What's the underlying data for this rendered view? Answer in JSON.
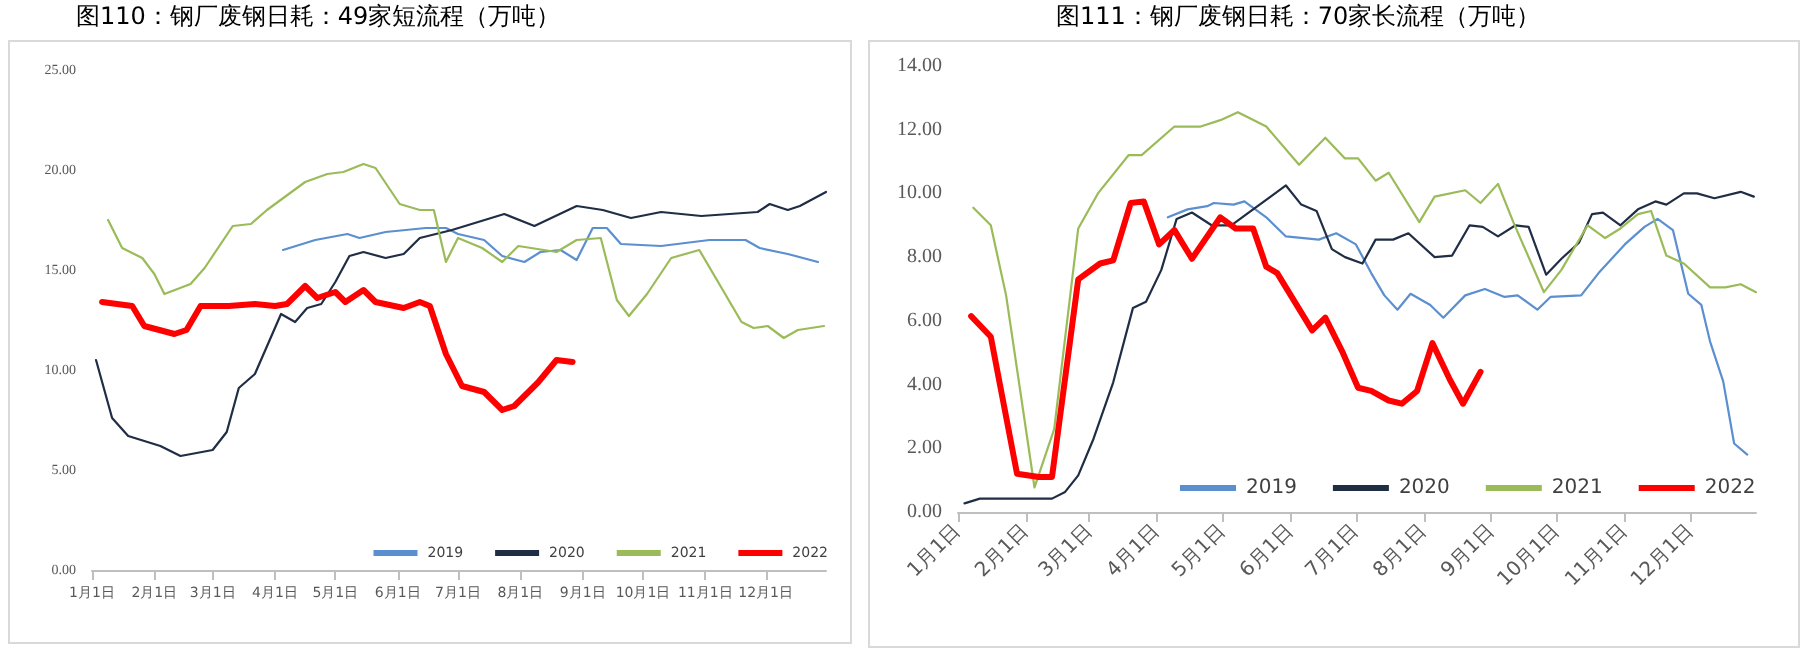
{
  "chart_data": [
    {
      "type": "line",
      "title": "图110：钢厂废钢日耗：49家短流程（万吨）",
      "xlim": [
        "--01-01",
        "--12-31"
      ],
      "xticks": [
        {
          "value": "--01-01",
          "label": "1月1日"
        },
        {
          "value": "--02-01",
          "label": "2月1日"
        },
        {
          "value": "--03-01",
          "label": "3月1日"
        },
        {
          "value": "--04-01",
          "label": "4月1日"
        },
        {
          "value": "--05-01",
          "label": "5月1日"
        },
        {
          "value": "--06-01",
          "label": "6月1日"
        },
        {
          "value": "--07-01",
          "label": "7月1日"
        },
        {
          "value": "--08-01",
          "label": "8月1日"
        },
        {
          "value": "--09-01",
          "label": "9月1日"
        },
        {
          "value": "--10-01",
          "label": "10月1日"
        },
        {
          "value": "--11-01",
          "label": "11月1日"
        },
        {
          "value": "--12-01",
          "label": "12月1日"
        }
      ],
      "ylim": [
        0,
        25
      ],
      "yticks": [
        {
          "value": 0,
          "label": "0.00"
        },
        {
          "value": 5,
          "label": "5.00"
        },
        {
          "value": 10,
          "label": "10.00"
        },
        {
          "value": 15,
          "label": "15.00"
        },
        {
          "value": 20,
          "label": "20.00"
        },
        {
          "value": 25,
          "label": "25.00"
        }
      ],
      "grid": false,
      "legend": "bottom right",
      "marker": "none",
      "series": [
        {
          "name": "2019",
          "color": "#5b8fd0",
          "x": [
            "--04-05",
            "--04-21",
            "--05-07",
            "--05-13",
            "--05-26",
            "--06-15",
            "--06-25",
            "--07-01",
            "--07-14",
            "--07-23",
            "--08-03",
            "--08-11",
            "--08-21",
            "--08-29",
            "--09-06",
            "--09-13",
            "--09-20",
            "--10-10",
            "--11-03",
            "--11-21",
            "--11-28",
            "--12-12",
            "--12-27"
          ],
          "values": [
            16.0,
            16.5,
            16.8,
            16.6,
            16.9,
            17.1,
            17.1,
            16.8,
            16.5,
            15.7,
            15.4,
            15.9,
            16.0,
            15.5,
            17.1,
            17.1,
            16.3,
            16.2,
            16.5,
            16.5,
            16.1,
            15.8,
            15.4
          ]
        },
        {
          "name": "2020",
          "color": "#1f2d45",
          "x": [
            "--01-03",
            "--01-11",
            "--01-19",
            "--02-04",
            "--02-14",
            "--03-01",
            "--03-08",
            "--03-14",
            "--03-22",
            "--04-04",
            "--04-11",
            "--04-17",
            "--04-24",
            "--05-01",
            "--05-08",
            "--05-15",
            "--05-26",
            "--06-04",
            "--06-12",
            "--06-20",
            "--06-28",
            "--07-11",
            "--07-24",
            "--08-08",
            "--08-29",
            "--09-11",
            "--09-25",
            "--10-10",
            "--10-30",
            "--11-27",
            "--12-03",
            "--12-12",
            "--12-18",
            "--12-31"
          ],
          "values": [
            10.5,
            7.6,
            6.7,
            6.2,
            5.7,
            6.0,
            6.9,
            9.1,
            9.8,
            12.8,
            12.4,
            13.1,
            13.3,
            14.4,
            15.7,
            15.9,
            15.6,
            15.8,
            16.6,
            16.8,
            17.0,
            17.4,
            17.8,
            17.2,
            18.2,
            18.0,
            17.6,
            17.9,
            17.7,
            17.9,
            18.3,
            18.0,
            18.2,
            18.9
          ]
        },
        {
          "name": "2021",
          "color": "#9bbb59",
          "x": [
            "--01-09",
            "--01-16",
            "--01-26",
            "--02-01",
            "--02-06",
            "--02-19",
            "--02-26",
            "--03-11",
            "--03-20",
            "--03-28",
            "--04-16",
            "--04-27",
            "--05-05",
            "--05-15",
            "--05-21",
            "--06-02",
            "--06-12",
            "--06-19",
            "--06-25",
            "--07-01",
            "--07-13",
            "--07-23",
            "--07-31",
            "--08-19",
            "--08-29",
            "--09-10",
            "--09-18",
            "--09-24",
            "--10-03",
            "--10-15",
            "--10-29",
            "--11-19",
            "--11-25",
            "--12-02",
            "--12-10",
            "--12-17",
            "--12-30"
          ],
          "values": [
            17.5,
            16.1,
            15.6,
            14.8,
            13.8,
            14.3,
            15.1,
            17.2,
            17.3,
            18.0,
            19.4,
            19.8,
            19.9,
            20.3,
            20.1,
            18.3,
            18.0,
            18.0,
            15.4,
            16.6,
            16.1,
            15.4,
            16.2,
            15.9,
            16.5,
            16.6,
            13.5,
            12.7,
            13.8,
            15.6,
            16.0,
            12.4,
            12.1,
            12.2,
            11.6,
            12.0,
            12.2
          ]
        },
        {
          "name": "2022",
          "color": "#ff0000",
          "x": [
            "--01-06",
            "--01-21",
            "--01-27",
            "--02-11",
            "--02-17",
            "--02-24",
            "--03-09",
            "--03-22",
            "--04-01",
            "--04-07",
            "--04-16",
            "--04-22",
            "--05-01",
            "--05-06",
            "--05-15",
            "--05-21",
            "--06-04",
            "--06-12",
            "--06-17",
            "--06-25",
            "--07-03",
            "--07-14",
            "--07-23",
            "--07-29",
            "--08-10",
            "--08-19",
            "--08-27"
          ],
          "values": [
            13.4,
            13.2,
            12.2,
            11.8,
            12.0,
            13.2,
            13.2,
            13.3,
            13.2,
            13.3,
            14.2,
            13.6,
            13.9,
            13.4,
            14.0,
            13.4,
            13.1,
            13.4,
            13.2,
            10.8,
            9.2,
            8.9,
            8.0,
            8.2,
            9.4,
            10.5,
            10.4
          ]
        }
      ]
    },
    {
      "type": "line",
      "title": "图111：钢厂废钢日耗：70家长流程（万吨）",
      "xlim": [
        "--01-01",
        "--12-31"
      ],
      "xticks": [
        {
          "value": "--01-01",
          "label": "1月1日"
        },
        {
          "value": "--02-01",
          "label": "2月1日"
        },
        {
          "value": "--03-01",
          "label": "3月1日"
        },
        {
          "value": "--04-01",
          "label": "4月1日"
        },
        {
          "value": "--05-01",
          "label": "5月1日"
        },
        {
          "value": "--06-01",
          "label": "6月1日"
        },
        {
          "value": "--07-01",
          "label": "7月1日"
        },
        {
          "value": "--08-01",
          "label": "8月1日"
        },
        {
          "value": "--09-01",
          "label": "9月1日"
        },
        {
          "value": "--10-01",
          "label": "10月1日"
        },
        {
          "value": "--11-01",
          "label": "11月1日"
        },
        {
          "value": "--12-01",
          "label": "12月1日"
        }
      ],
      "ylim": [
        0,
        14
      ],
      "yticks": [
        {
          "value": 0,
          "label": "0.00"
        },
        {
          "value": 2,
          "label": "2.00"
        },
        {
          "value": 4,
          "label": "4.00"
        },
        {
          "value": 6,
          "label": "6.00"
        },
        {
          "value": 8,
          "label": "8.00"
        },
        {
          "value": 10,
          "label": "10.00"
        },
        {
          "value": 12,
          "label": "12.00"
        },
        {
          "value": 14,
          "label": "14.00"
        }
      ],
      "grid": false,
      "legend": "bottom",
      "marker": "none",
      "series": [
        {
          "name": "2019",
          "color": "#5b8fd0",
          "x": [
            "--04-06",
            "--04-15",
            "--04-24",
            "--04-27",
            "--05-06",
            "--05-11",
            "--05-21",
            "--05-30",
            "--06-14",
            "--06-22",
            "--07-01",
            "--07-08",
            "--07-14",
            "--07-20",
            "--07-26",
            "--08-04",
            "--08-10",
            "--08-20",
            "--08-29",
            "--09-07",
            "--09-13",
            "--09-22",
            "--09-28",
            "--10-12",
            "--10-20",
            "--11-01",
            "--11-10",
            "--11-16",
            "--11-23",
            "--11-30",
            "--12-06",
            "--12-10",
            "--12-16",
            "--12-21",
            "--12-27"
          ],
          "values": [
            9.25,
            9.5,
            9.6,
            9.7,
            9.65,
            9.75,
            9.25,
            8.65,
            8.55,
            8.75,
            8.4,
            7.5,
            6.8,
            6.35,
            6.85,
            6.5,
            6.1,
            6.8,
            7.0,
            6.75,
            6.8,
            6.35,
            6.75,
            6.8,
            7.5,
            8.4,
            8.95,
            9.2,
            8.85,
            6.85,
            6.5,
            5.35,
            4.1,
            2.15,
            1.8
          ]
        },
        {
          "name": "2020",
          "color": "#1f2d45",
          "x": [
            "--01-04",
            "--01-11",
            "--02-13",
            "--02-19",
            "--02-25",
            "--03-03",
            "--03-12",
            "--03-21",
            "--03-27",
            "--04-03",
            "--04-10",
            "--04-17",
            "--04-26",
            "--05-05",
            "--05-12",
            "--05-23",
            "--05-30",
            "--06-06",
            "--06-13",
            "--06-20",
            "--06-26",
            "--07-04",
            "--07-10",
            "--07-18",
            "--07-25",
            "--08-06",
            "--08-14",
            "--08-22",
            "--08-28",
            "--09-04",
            "--09-12",
            "--09-18",
            "--09-26",
            "--10-03",
            "--10-11",
            "--10-17",
            "--10-22",
            "--10-30",
            "--11-07",
            "--11-15",
            "--11-20",
            "--11-28",
            "--12-04",
            "--12-12",
            "--12-24",
            "--12-30"
          ],
          "values": [
            0.27,
            0.42,
            0.42,
            0.63,
            1.15,
            2.3,
            4.07,
            6.4,
            6.6,
            7.6,
            9.2,
            9.4,
            9.0,
            9.0,
            9.35,
            9.9,
            10.25,
            9.65,
            9.45,
            8.25,
            8.0,
            7.8,
            8.55,
            8.55,
            8.75,
            8.0,
            8.05,
            9.0,
            8.95,
            8.65,
            9.0,
            8.95,
            7.45,
            7.95,
            8.45,
            9.35,
            9.4,
            9.0,
            9.5,
            9.75,
            9.65,
            10.0,
            10.0,
            9.85,
            10.05,
            9.9
          ]
        },
        {
          "name": "2021",
          "color": "#9bbb59",
          "x": [
            "--01-08",
            "--01-16",
            "--01-23",
            "--02-05",
            "--02-14",
            "--02-25",
            "--03-05",
            "--03-19",
            "--03-25",
            "--04-09",
            "--04-21",
            "--04-30",
            "--05-08",
            "--05-21",
            "--06-05",
            "--06-17",
            "--06-26",
            "--07-02",
            "--07-10",
            "--07-16",
            "--07-30",
            "--08-06",
            "--08-20",
            "--08-27",
            "--09-04",
            "--09-11",
            "--09-25",
            "--10-03",
            "--10-15",
            "--10-23",
            "--10-30",
            "--11-07",
            "--11-13",
            "--11-20",
            "--11-28",
            "--12-10",
            "--12-17",
            "--12-24",
            "--12-31"
          ],
          "values": [
            9.55,
            9.0,
            6.8,
            0.77,
            2.6,
            8.9,
            10.0,
            11.2,
            11.2,
            12.1,
            12.1,
            12.3,
            12.55,
            12.1,
            10.9,
            11.75,
            11.1,
            11.1,
            10.4,
            10.65,
            9.1,
            9.9,
            10.1,
            9.7,
            10.3,
            9.1,
            6.9,
            7.6,
            9.0,
            8.6,
            8.9,
            9.35,
            9.45,
            8.05,
            7.8,
            7.05,
            7.05,
            7.15,
            6.9
          ]
        },
        {
          "name": "2022",
          "color": "#ff0000",
          "x": [
            "--01-07",
            "--01-16",
            "--01-28",
            "--02-07",
            "--02-13",
            "--02-25",
            "--03-06",
            "--03-12",
            "--03-20",
            "--03-26",
            "--04-02",
            "--04-09",
            "--04-17",
            "--04-30",
            "--05-07",
            "--05-15",
            "--05-21",
            "--05-26",
            "--06-11",
            "--06-17",
            "--06-25",
            "--07-02",
            "--07-08",
            "--07-16",
            "--07-22",
            "--07-29",
            "--08-05",
            "--08-13",
            "--08-19",
            "--08-27"
          ],
          "values": [
            6.15,
            5.5,
            1.2,
            1.1,
            1.1,
            7.3,
            7.8,
            7.9,
            9.7,
            9.75,
            8.4,
            8.85,
            7.95,
            9.25,
            8.9,
            8.9,
            7.7,
            7.5,
            5.7,
            6.1,
            5.0,
            3.9,
            3.8,
            3.5,
            3.4,
            3.8,
            5.3,
            4.15,
            3.4,
            4.4
          ]
        }
      ]
    }
  ]
}
